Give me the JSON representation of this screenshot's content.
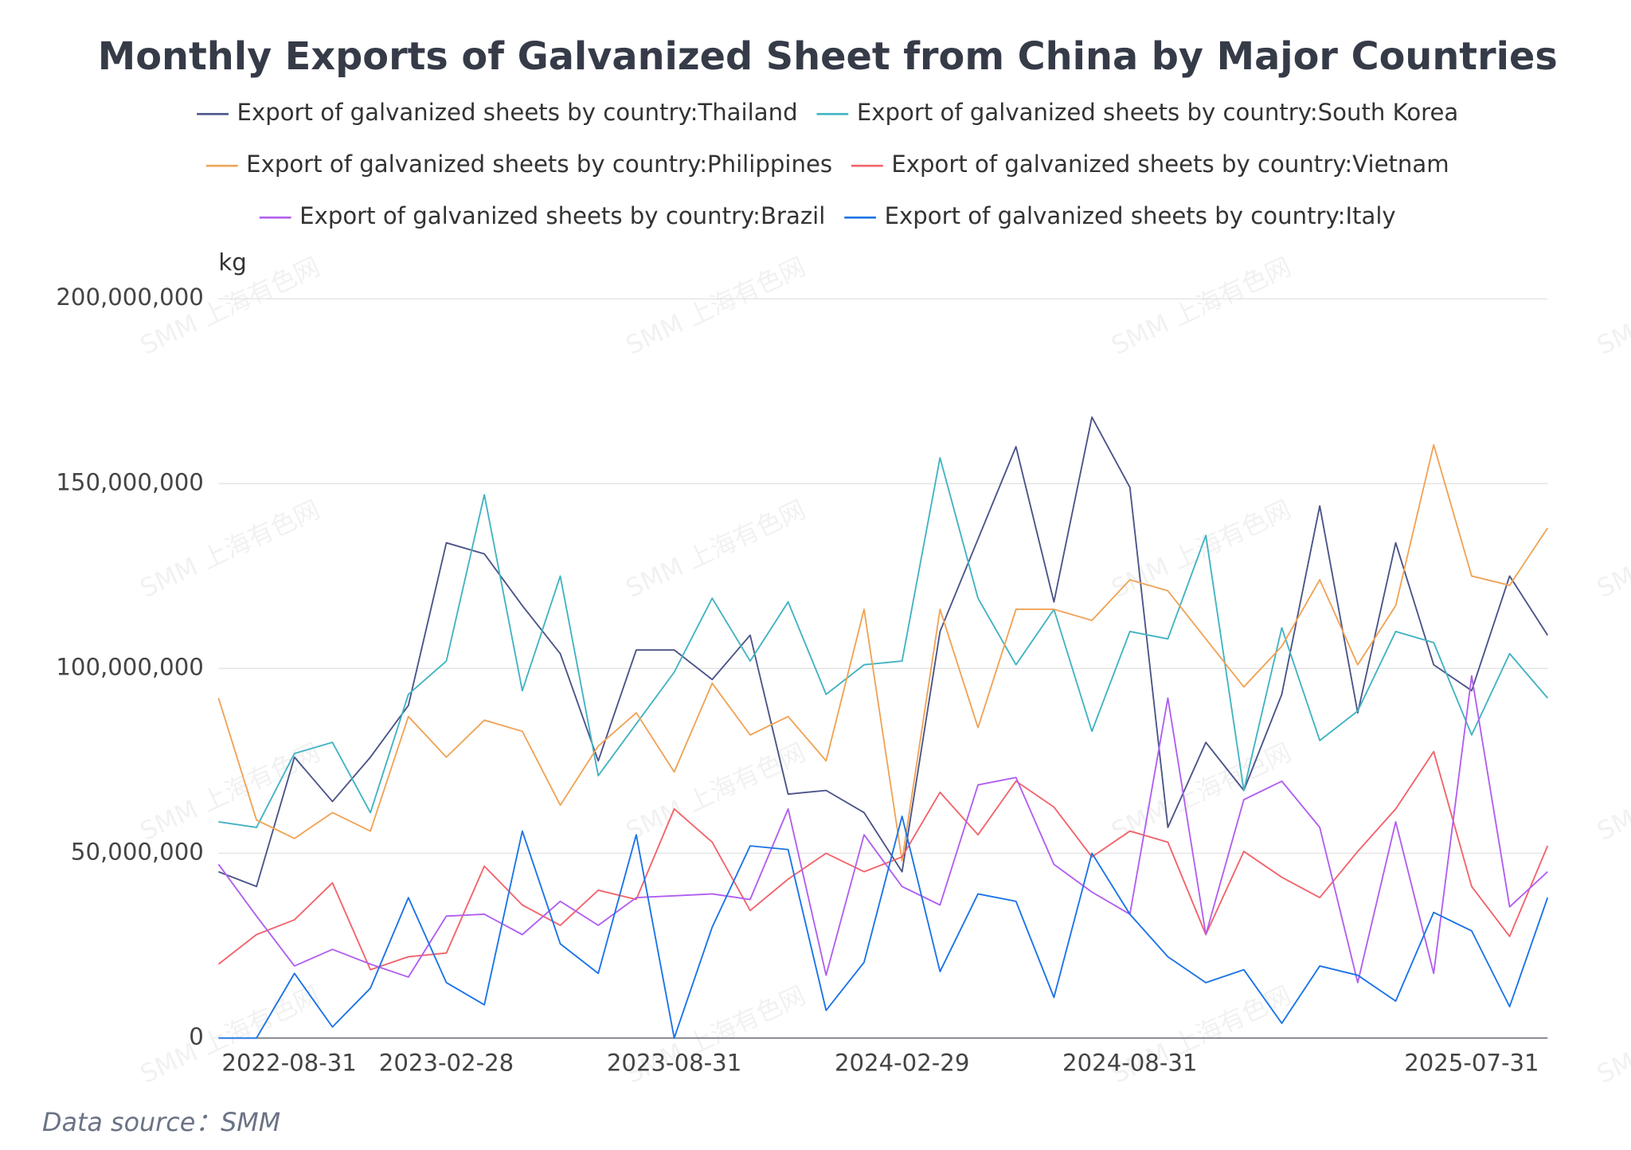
{
  "chart_data": {
    "type": "line",
    "title": "Monthly Exports of Galvanized Sheet from China by Major Countries",
    "y_axis_label": "kg",
    "source": "Data source：SMM",
    "watermark": "SMM 上海有色网",
    "legend": "top",
    "grid": true,
    "categories": [
      null,
      null,
      "2022-08-31",
      null,
      null,
      null,
      "2023-02-28",
      null,
      null,
      null,
      null,
      null,
      "2023-08-31",
      null,
      null,
      null,
      null,
      null,
      "2024-02-29",
      null,
      null,
      null,
      null,
      null,
      "2024-08-31",
      null,
      null,
      null,
      null,
      null,
      null,
      null,
      null,
      "2025-07-31",
      null,
      null
    ],
    "ylim": [
      0,
      200000000
    ],
    "yticks": [
      0,
      {
        "value": 50000000,
        "label": "50,000,000"
      },
      {
        "value": 100000000,
        "label": "100,000,000"
      },
      {
        "value": 150000000,
        "label": "150,000,000"
      },
      {
        "value": 200000000,
        "label": "200,000,000"
      }
    ],
    "series": [
      {
        "name": "Export of galvanized sheets by country:Thailand",
        "color": "#4a5388",
        "values": [
          45000000,
          41000000,
          76000000,
          64000000,
          76000000,
          90000000,
          134000000,
          131000000,
          117000000,
          104000000,
          75000000,
          105000000,
          105000000,
          97000000,
          109000000,
          66000000,
          67000000,
          61000000,
          45000000,
          110000000,
          135000000,
          160000000,
          118000000,
          168000000,
          149000000,
          57000000,
          80000000,
          67000000,
          93000000,
          144000000,
          88000000,
          134000000,
          101000000,
          94000000,
          125000000,
          109000000
        ]
      },
      {
        "name": "Export of galvanized sheets by country:South Korea",
        "color": "#41b3c2",
        "values": [
          58500000,
          57000000,
          77000000,
          80000000,
          61000000,
          93000000,
          102000000,
          147000000,
          94000000,
          125000000,
          71000000,
          85000000,
          99000000,
          119000000,
          102000000,
          118000000,
          93000000,
          101000000,
          102000000,
          157000000,
          119000000,
          101000000,
          116000000,
          83000000,
          110000000,
          108000000,
          136000000,
          67000000,
          111000000,
          80500000,
          88500000,
          110000000,
          107000000,
          82000000,
          104000000,
          92000000
        ]
      },
      {
        "name": "Export of galvanized sheets by country:Philippines",
        "color": "#f0a356",
        "values": [
          92000000,
          59000000,
          54000000,
          61000000,
          56000000,
          87000000,
          76000000,
          86000000,
          83000000,
          63000000,
          79000000,
          88000000,
          72000000,
          96000000,
          82000000,
          87000000,
          75000000,
          116000000,
          48000000,
          116000000,
          84000000,
          116000000,
          116000000,
          113000000,
          124000000,
          121000000,
          108000000,
          95000000,
          106000000,
          124000000,
          101000000,
          117000000,
          160500000,
          125000000,
          122500000,
          138000000
        ]
      },
      {
        "name": "Export of galvanized sheets by country:Vietnam",
        "color": "#f2636b",
        "values": [
          20000000,
          28000000,
          32000000,
          42000000,
          18500000,
          22000000,
          23000000,
          46500000,
          36000000,
          30500000,
          40000000,
          37500000,
          62000000,
          53000000,
          34500000,
          43000000,
          50000000,
          45000000,
          49000000,
          66500000,
          55000000,
          69500000,
          62500000,
          49000000,
          56000000,
          53000000,
          28000000,
          50500000,
          43500000,
          38000000,
          50500000,
          62000000,
          77500000,
          41000000,
          27500000,
          52000000
        ]
      },
      {
        "name": "Export of galvanized sheets by country:Brazil",
        "color": "#b15ef0",
        "values": [
          47000000,
          33000000,
          19500000,
          24000000,
          20000000,
          16500000,
          33000000,
          33500000,
          28000000,
          37000000,
          30500000,
          38000000,
          38500000,
          39000000,
          37500000,
          62000000,
          17000000,
          55000000,
          41000000,
          36000000,
          68500000,
          70500000,
          47000000,
          39500000,
          33500000,
          92000000,
          28000000,
          64500000,
          69500000,
          57000000,
          15000000,
          58500000,
          17500000,
          98000000,
          35500000,
          45000000
        ]
      },
      {
        "name": "Export of galvanized sheets by country:Italy",
        "color": "#1a73e8",
        "values": [
          0,
          0,
          17500000,
          3000000,
          13500000,
          38000000,
          15000000,
          9000000,
          56000000,
          25500000,
          17500000,
          55000000,
          0,
          30000000,
          52000000,
          51000000,
          7500000,
          20500000,
          60000000,
          18000000,
          39000000,
          37000000,
          11000000,
          50000000,
          33500000,
          22000000,
          15000000,
          18500000,
          4000000,
          19500000,
          17000000,
          10000000,
          34000000,
          29000000,
          8500000,
          38000000
        ]
      }
    ]
  }
}
